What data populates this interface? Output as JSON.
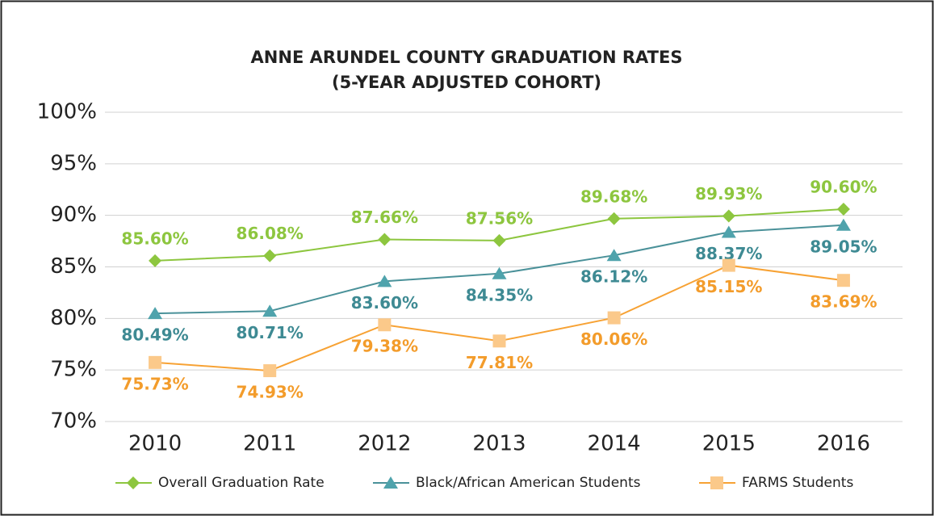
{
  "chart_data": {
    "type": "line",
    "title": "ANNE ARUNDEL COUNTY GRADUATION RATES",
    "subtitle": "(5-YEAR ADJUSTED COHORT)",
    "categories": [
      "2010",
      "2011",
      "2012",
      "2013",
      "2014",
      "2015",
      "2016"
    ],
    "ylim": [
      70,
      100
    ],
    "yticks": [
      {
        "value": 70,
        "label": "70%"
      },
      {
        "value": 75,
        "label": "75%"
      },
      {
        "value": 80,
        "label": "80%"
      },
      {
        "value": 85,
        "label": "85%"
      },
      {
        "value": 90,
        "label": "90%"
      },
      {
        "value": 95,
        "label": "95%"
      },
      {
        "value": 100,
        "label": "100%"
      }
    ],
    "grid": true,
    "legend": "bottom",
    "series": [
      {
        "name": "Overall Graduation Rate",
        "color": "#8dc63f",
        "marker_color": "#8dc63f",
        "label_color": "#8dc63f",
        "marker": "diamond",
        "label_position": "above",
        "values": [
          85.6,
          86.08,
          87.66,
          87.56,
          89.68,
          89.93,
          90.6
        ],
        "value_labels": [
          "85.60%",
          "86.08%",
          "87.66%",
          "87.56%",
          "89.68%",
          "89.93%",
          "90.60%"
        ]
      },
      {
        "name": "Black/African American Students",
        "color": "#4a9199",
        "marker_color": "#4fa3ac",
        "label_color": "#3e8a93",
        "marker": "triangle",
        "label_position": "below",
        "values": [
          80.49,
          80.71,
          83.6,
          84.35,
          86.12,
          88.37,
          89.05
        ],
        "value_labels": [
          "80.49%",
          "80.71%",
          "83.60%",
          "84.35%",
          "86.12%",
          "88.37%",
          "89.05%"
        ]
      },
      {
        "name": "FARMS Students",
        "color": "#f7a234",
        "marker_color": "#fbc98a",
        "label_color": "#f39c2b",
        "marker": "square",
        "label_position": "below",
        "values": [
          75.73,
          74.93,
          79.38,
          77.81,
          80.06,
          85.15,
          83.69
        ],
        "value_labels": [
          "75.73%",
          "74.93%",
          "79.38%",
          "77.81%",
          "80.06%",
          "85.15%",
          "83.69%"
        ]
      }
    ]
  }
}
